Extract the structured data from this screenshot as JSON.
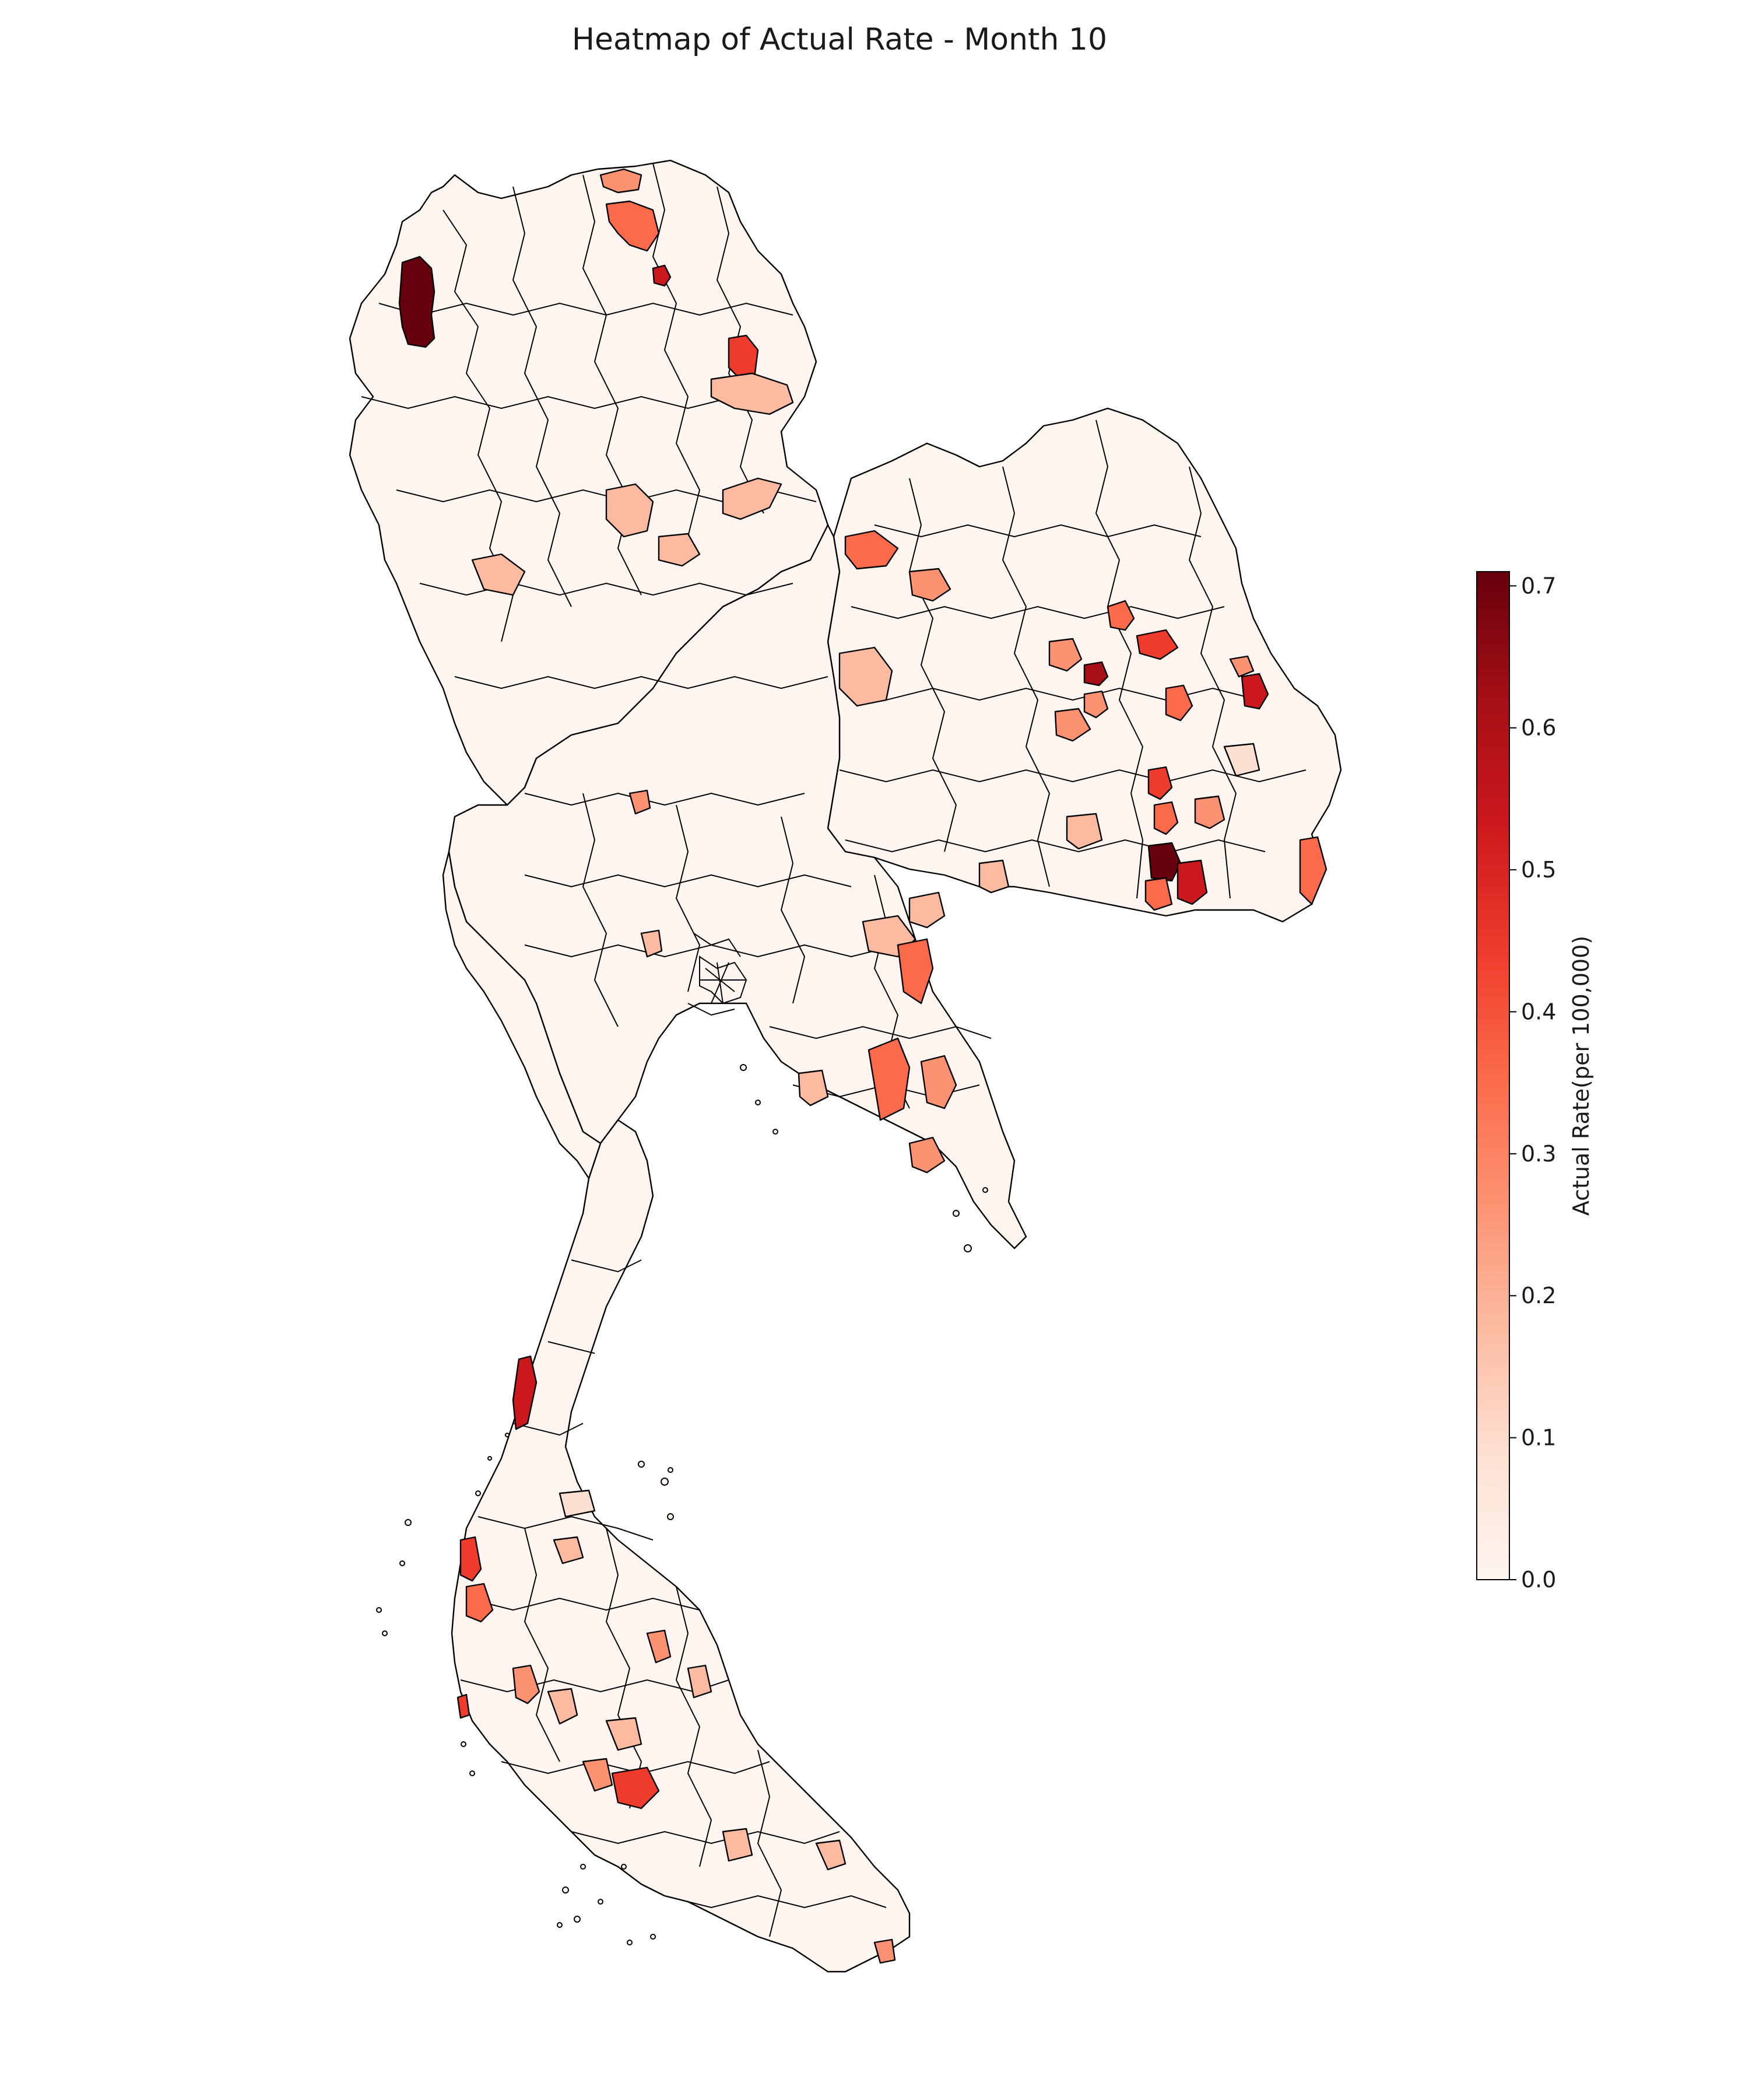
{
  "title": "Heatmap of Actual Rate - Month 10",
  "colorbar": {
    "label": "Actual Rate(per 100,000)",
    "min": 0.0,
    "max": 0.71,
    "ticks": [
      "0.0",
      "0.1",
      "0.2",
      "0.3",
      "0.4",
      "0.5",
      "0.6",
      "0.7"
    ],
    "tick_values": [
      0.0,
      0.1,
      0.2,
      0.3,
      0.4,
      0.5,
      0.6,
      0.7
    ],
    "colormap": [
      "#fff5f0",
      "#fee0d2",
      "#fcbba1",
      "#fc9272",
      "#fb6a4a",
      "#ef3b2c",
      "#cb181d",
      "#a50f15",
      "#67000d"
    ]
  },
  "chart_data": {
    "type": "heatmap",
    "title": "Heatmap of Actual Rate - Month 10",
    "colorbar_label": "Actual Rate(per 100,000)",
    "range": [
      0.0,
      0.71
    ],
    "highlighted_districts": [
      {
        "region": "far-north-west",
        "value": 0.7
      },
      {
        "region": "north-east-border",
        "value": 0.68
      },
      {
        "region": "north-east-south",
        "value": 0.66
      },
      {
        "region": "north-east-south-2",
        "value": 0.55
      },
      {
        "region": "north-east-east",
        "value": 0.55
      },
      {
        "region": "north-east-central",
        "value": 0.48
      },
      {
        "region": "north-east-mid",
        "value": 0.45
      },
      {
        "region": "north-tip",
        "value": 0.55
      },
      {
        "region": "north-north",
        "value": 0.45
      },
      {
        "region": "south-andaman",
        "value": 0.55
      },
      {
        "region": "south-phuket",
        "value": 0.45
      },
      {
        "region": "south-gulf",
        "value": 0.5
      },
      {
        "region": "east-chonburi",
        "value": 0.4
      },
      {
        "region": "east-chanthaburi",
        "value": 0.4
      }
    ]
  }
}
